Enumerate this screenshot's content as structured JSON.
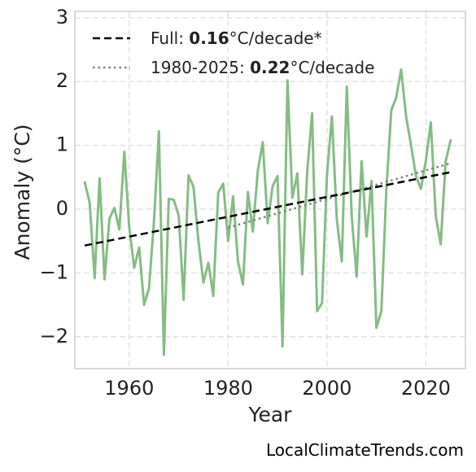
{
  "chart_data": {
    "type": "line",
    "xlabel": "Year",
    "ylabel": "Anomaly (°C)",
    "xlim": [
      1949,
      2028
    ],
    "ylim": [
      -2.5,
      3.1
    ],
    "xticks": [
      "1960",
      "1980",
      "2000",
      "2020"
    ],
    "yticks": [
      "3",
      "2",
      "1",
      "0",
      "−1",
      "−2"
    ],
    "grid": true,
    "legend_position": "top-left",
    "legend": [
      {
        "key": "full",
        "prefix": "Full: ",
        "value": "0.16",
        "suffix": "°C/decade*"
      },
      {
        "key": "recent",
        "prefix": "1980-2025: ",
        "value": "0.22",
        "suffix": "°C/decade"
      }
    ],
    "series": [
      {
        "x": [
          1951,
          1952,
          1953,
          1954,
          1955,
          1956,
          1957,
          1958,
          1959,
          1960,
          1961,
          1962,
          1963,
          1964,
          1965,
          1966,
          1967,
          1968,
          1969,
          1970,
          1971,
          1972,
          1973,
          1974,
          1975,
          1976,
          1977,
          1978,
          1979,
          1980,
          1981,
          1982,
          1983,
          1984,
          1985,
          1986,
          1987,
          1988,
          1989,
          1990,
          1991,
          1992,
          1993,
          1994,
          1995,
          1996,
          1997,
          1998,
          1999,
          2000,
          2001,
          2002,
          2003,
          2004,
          2005,
          2006,
          2007,
          2008,
          2009,
          2010,
          2011,
          2012,
          2013,
          2014,
          2015,
          2016,
          2017,
          2018,
          2019,
          2020,
          2021,
          2022,
          2023,
          2024,
          2025
        ],
        "values": [
          0.42,
          0.1,
          -1.08,
          0.48,
          -1.1,
          -0.15,
          0.02,
          -0.32,
          0.9,
          -0.28,
          -0.92,
          -0.6,
          -1.5,
          -1.24,
          -0.2,
          1.22,
          -2.28,
          0.16,
          0.15,
          -0.1,
          -1.42,
          0.53,
          0.35,
          -0.5,
          -1.15,
          -0.84,
          -1.36,
          0.26,
          0.4,
          -0.5,
          0.2,
          -0.82,
          -1.18,
          0.27,
          -0.35,
          0.6,
          1.05,
          -0.22,
          0.36,
          0.52,
          -2.15,
          2.02,
          0.18,
          0.56,
          -1.02,
          0.6,
          1.5,
          -1.6,
          -1.47,
          0.55,
          1.45,
          -0.17,
          -0.82,
          1.92,
          -0.12,
          -1.06,
          0.75,
          -0.43,
          0.44,
          -1.86,
          -1.6,
          0.3,
          1.55,
          1.75,
          2.19,
          1.45,
          1.0,
          0.52,
          0.32,
          0.76,
          1.36,
          -0.1,
          -0.55,
          0.75,
          1.08
        ],
        "color": "#86bb85"
      }
    ],
    "trendlines": [
      {
        "key": "full",
        "x": [
          1951,
          2025
        ],
        "values": [
          -0.57,
          0.58
        ],
        "color": "#000000",
        "style": "dashed"
      },
      {
        "key": "recent",
        "x": [
          1980,
          2025
        ],
        "values": [
          -0.29,
          0.72
        ],
        "color": "#808080",
        "style": "dotted"
      }
    ]
  },
  "source": "LocalClimateTrends.com"
}
